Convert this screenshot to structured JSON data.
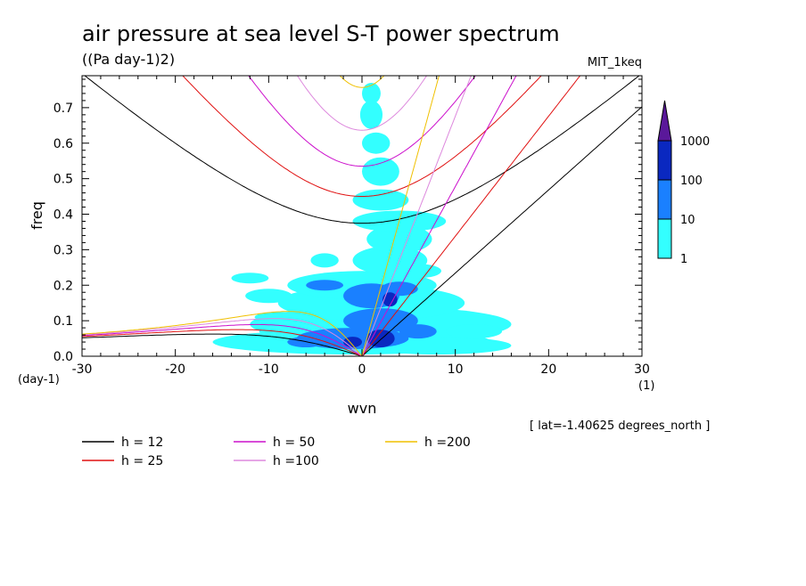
{
  "chart_data": {
    "type": "heatmap",
    "title": "air pressure at sea level S-T power spectrum",
    "subtitle": "((Pa day-1)2)",
    "model": "MIT_1keq",
    "xlabel": "wvn",
    "ylabel": "freq",
    "x_unit": "(1)",
    "y_unit": "(day-1)",
    "xlim": [
      -30,
      30
    ],
    "ylim": [
      0,
      0.79
    ],
    "x_ticks": [
      -30,
      -20,
      -10,
      0,
      10,
      20,
      30
    ],
    "y_ticks": [
      0.0,
      0.1,
      0.2,
      0.3,
      0.4,
      0.5,
      0.6,
      0.7
    ],
    "y_tick_labels": [
      "0.0",
      "0.1",
      "0.2",
      "0.3",
      "0.4",
      "0.5",
      "0.6",
      "0.7"
    ],
    "annotation": "[ lat=-1.40625 degrees_north ]",
    "colorbar": {
      "levels": [
        "1",
        "10",
        "100",
        "1000"
      ],
      "colors": [
        "#33ffff",
        "#1a80ff",
        "#0a28c0",
        "#5a189a"
      ]
    },
    "contour_regions": [
      {
        "level": 1,
        "description": "broad region",
        "x_range": [
          -15,
          16
        ],
        "y_range": [
          0.0,
          0.77
        ]
      },
      {
        "level": 10,
        "x_range": [
          -7,
          8
        ],
        "y_range": [
          0.02,
          0.24
        ]
      },
      {
        "level": 100,
        "x_range": [
          -1,
          4
        ],
        "y_range": [
          0.03,
          0.2
        ]
      }
    ],
    "dispersion_curves": [
      {
        "h": 12,
        "label": "h = 12",
        "color": "#000000"
      },
      {
        "h": 25,
        "label": "h = 25",
        "color": "#e01010"
      },
      {
        "h": 50,
        "label": "h = 50",
        "color": "#cc10cc"
      },
      {
        "h": 100,
        "label": "h =100",
        "color": "#dd88dd"
      },
      {
        "h": 200,
        "label": "h =200",
        "color": "#f0c000"
      }
    ],
    "grid": false,
    "legend_placement": "bottom-left"
  }
}
